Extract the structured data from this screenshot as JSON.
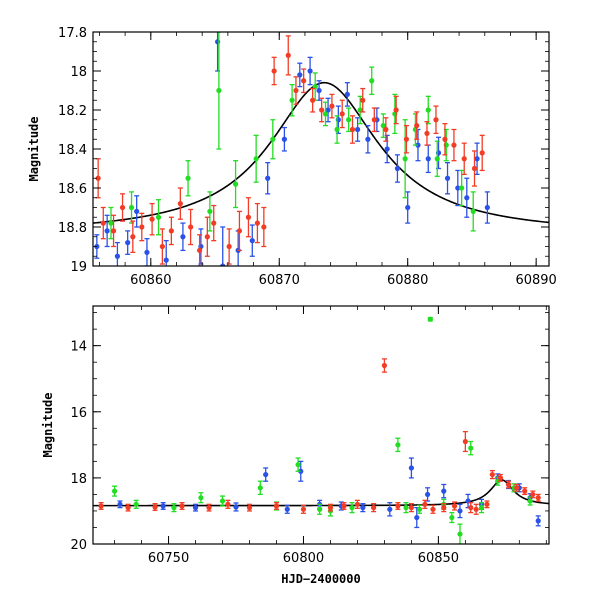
{
  "chart_data": [
    {
      "type": "scatter",
      "title": "",
      "xlabel": "",
      "ylabel": "Magnitude",
      "xlim": [
        60855.5,
        60891
      ],
      "ylim": [
        19.0,
        17.8
      ],
      "y_inverted": true,
      "x_ticks": [
        60860,
        60870,
        60880,
        60890
      ],
      "y_ticks": [
        17.8,
        18,
        18.2,
        18.4,
        18.6,
        18.8,
        19
      ],
      "y_tick_labels": [
        "17.8",
        "18",
        "18.2",
        "18.4",
        "18.6",
        "18.8",
        "19"
      ],
      "grid": false,
      "legend": "none",
      "model_curve": {
        "type": "line",
        "color": "#000000",
        "peak_x": 60873.5,
        "peak_mag": 18.06,
        "baseline_mag": 18.84,
        "width_days": 5.2
      },
      "series": [
        {
          "color": "#2a52e8",
          "x": [
            60855.8,
            60856.6,
            60857.4,
            60858.2,
            60858.9,
            60859.7,
            60861.2,
            60862.5,
            60863.9,
            60865.2,
            60865.6,
            60866.8,
            60867.9,
            60869.1,
            60870.4,
            60871.6,
            60872.4,
            60873.1,
            60873.8,
            60874.6,
            60875.3,
            60876.1,
            60876.9,
            60877.6,
            60878.4,
            60879.2,
            60880.0,
            60880.8,
            60881.6,
            60882.4,
            60883.1,
            60883.9,
            60884.6,
            60885.4,
            60886.2
          ],
          "y": [
            18.9,
            18.82,
            18.95,
            18.88,
            18.72,
            18.93,
            18.97,
            18.85,
            18.9,
            17.85,
            19.0,
            18.92,
            18.87,
            18.55,
            18.35,
            18.02,
            18.0,
            18.1,
            18.2,
            18.25,
            18.12,
            18.3,
            18.35,
            18.25,
            18.4,
            18.5,
            18.7,
            18.38,
            18.45,
            18.42,
            18.55,
            18.6,
            18.65,
            18.45,
            18.7
          ],
          "err": [
            0.06,
            0.08,
            0.07,
            0.06,
            0.08,
            0.07,
            0.1,
            0.07,
            0.09,
            0.15,
            0.2,
            0.1,
            0.08,
            0.08,
            0.06,
            0.06,
            0.07,
            0.05,
            0.06,
            0.07,
            0.06,
            0.06,
            0.07,
            0.06,
            0.07,
            0.07,
            0.08,
            0.08,
            0.07,
            0.08,
            0.08,
            0.09,
            0.1,
            0.08,
            0.08
          ]
        },
        {
          "color": "#22dd22",
          "x": [
            60856.9,
            60858.5,
            60860.6,
            60862.9,
            60864.6,
            60865.3,
            60866.6,
            60868.2,
            60869.5,
            60871.0,
            60872.8,
            60873.6,
            60874.5,
            60875.4,
            60876.3,
            60877.2,
            60878.1,
            60879.0,
            60879.8,
            60880.6,
            60881.6,
            60882.3,
            60883.0,
            60884.2,
            60885.1
          ],
          "y": [
            18.78,
            18.7,
            18.75,
            18.55,
            18.72,
            18.1,
            18.58,
            18.45,
            18.35,
            18.15,
            18.08,
            18.22,
            18.3,
            18.25,
            18.2,
            18.05,
            18.28,
            18.22,
            18.45,
            18.3,
            18.2,
            18.45,
            18.38,
            18.6,
            18.72
          ],
          "err": [
            0.08,
            0.08,
            0.09,
            0.09,
            0.1,
            0.3,
            0.12,
            0.12,
            0.1,
            0.08,
            0.07,
            0.06,
            0.07,
            0.06,
            0.07,
            0.07,
            0.06,
            0.1,
            0.2,
            0.08,
            0.07,
            0.09,
            0.08,
            0.09,
            0.1
          ]
        },
        {
          "color": "#f23c26",
          "x": [
            60855.9,
            60856.3,
            60857.1,
            60857.8,
            60858.6,
            60859.3,
            60860.1,
            60860.9,
            60861.6,
            60862.3,
            60863.1,
            60863.8,
            60864.4,
            60864.9,
            60866.1,
            60866.9,
            60867.6,
            60868.3,
            60868.8,
            60869.6,
            60870.7,
            60871.3,
            60871.9,
            60872.6,
            60873.3,
            60874.1,
            60874.9,
            60875.7,
            60876.5,
            60877.4,
            60878.3,
            60879.1,
            60879.9,
            60880.7,
            60881.5,
            60882.2,
            60882.9,
            60883.6,
            60884.4,
            60885.2,
            60885.8
          ],
          "y": [
            18.55,
            18.78,
            18.82,
            18.7,
            18.85,
            18.8,
            18.76,
            18.9,
            18.82,
            18.68,
            18.8,
            18.92,
            18.85,
            18.78,
            18.9,
            18.82,
            18.75,
            18.78,
            18.8,
            18.0,
            17.92,
            18.1,
            18.05,
            18.15,
            18.2,
            18.18,
            18.22,
            18.3,
            18.15,
            18.25,
            18.3,
            18.2,
            18.35,
            18.28,
            18.32,
            18.25,
            18.35,
            18.38,
            18.45,
            18.5,
            18.42
          ],
          "err": [
            0.1,
            0.08,
            0.08,
            0.07,
            0.08,
            0.07,
            0.08,
            0.09,
            0.07,
            0.08,
            0.09,
            0.08,
            0.1,
            0.09,
            0.09,
            0.1,
            0.1,
            0.1,
            0.1,
            0.07,
            0.1,
            0.07,
            0.06,
            0.06,
            0.06,
            0.06,
            0.07,
            0.07,
            0.06,
            0.06,
            0.06,
            0.07,
            0.07,
            0.07,
            0.06,
            0.07,
            0.08,
            0.08,
            0.08,
            0.09,
            0.09
          ]
        }
      ]
    },
    {
      "type": "scatter",
      "title": "",
      "xlabel": "HJD−2400000",
      "ylabel": "Magnitude",
      "xlim": [
        60722,
        60891
      ],
      "ylim": [
        20.0,
        12.8
      ],
      "y_inverted": true,
      "x_ticks": [
        60750,
        60800,
        60850
      ],
      "y_ticks": [
        14,
        16,
        18,
        20
      ],
      "y_tick_labels": [
        "14",
        "16",
        "18",
        "20"
      ],
      "grid": false,
      "legend": "none",
      "model_curve": {
        "type": "line",
        "color": "#000000",
        "peak_x": 60873.5,
        "peak_mag": 18.06,
        "baseline_mag": 18.84,
        "width_days": 5.2
      },
      "series": [
        {
          "color": "#2a52e8",
          "x": [
            60732,
            60748,
            60760,
            60775,
            60786,
            60794,
            60799,
            60806,
            60814,
            60822,
            60832,
            60840,
            60842,
            60846,
            60852,
            60858,
            60861,
            60866,
            60872,
            60876,
            60880,
            60884,
            60887
          ],
          "y": [
            18.8,
            18.85,
            18.9,
            18.88,
            17.9,
            18.95,
            17.8,
            18.8,
            18.85,
            18.9,
            18.95,
            17.7,
            19.2,
            18.5,
            18.4,
            19.0,
            18.7,
            18.8,
            18.0,
            18.2,
            18.3,
            18.6,
            19.3
          ],
          "err": [
            0.1,
            0.1,
            0.1,
            0.12,
            0.2,
            0.12,
            0.3,
            0.12,
            0.12,
            0.12,
            0.2,
            0.3,
            0.3,
            0.2,
            0.2,
            0.2,
            0.2,
            0.15,
            0.12,
            0.12,
            0.12,
            0.12,
            0.15
          ]
        },
        {
          "color": "#22dd22",
          "x": [
            60730,
            60738,
            60752,
            60762,
            60770,
            60784,
            60790,
            60798,
            60806,
            60810,
            60818,
            60835,
            60838,
            60843,
            60847,
            60852,
            60855,
            60858,
            60862,
            60866,
            60872,
            60878,
            60884
          ],
          "y": [
            18.4,
            18.8,
            18.9,
            18.6,
            18.7,
            18.3,
            18.85,
            17.6,
            18.95,
            19.0,
            18.9,
            17.0,
            18.9,
            18.95,
            13.2,
            18.8,
            19.2,
            19.7,
            17.1,
            18.9,
            18.1,
            18.3,
            18.7
          ],
          "err": [
            0.15,
            0.12,
            0.12,
            0.15,
            0.15,
            0.2,
            0.12,
            0.2,
            0.15,
            0.15,
            0.15,
            0.2,
            0.15,
            0.12,
            0.05,
            0.15,
            0.15,
            0.3,
            0.2,
            0.15,
            0.12,
            0.12,
            0.12
          ]
        },
        {
          "color": "#f23c26",
          "x": [
            60725,
            60735,
            60745,
            60755,
            60765,
            60772,
            60780,
            60790,
            60800,
            60810,
            60815,
            60820,
            60826,
            60830,
            60835,
            60840,
            60845,
            60848,
            60852,
            60856,
            60860,
            60862,
            60864,
            60868,
            60870,
            60873,
            60876,
            60879,
            60882,
            60885,
            60887
          ],
          "y": [
            18.85,
            18.9,
            18.88,
            18.85,
            18.9,
            18.8,
            18.9,
            18.85,
            18.95,
            18.9,
            18.85,
            18.8,
            18.9,
            14.6,
            18.85,
            18.9,
            18.8,
            18.95,
            18.9,
            18.85,
            16.9,
            18.9,
            18.95,
            18.8,
            17.9,
            18.0,
            18.2,
            18.3,
            18.4,
            18.5,
            18.6
          ],
          "err": [
            0.1,
            0.1,
            0.1,
            0.1,
            0.1,
            0.12,
            0.1,
            0.1,
            0.12,
            0.1,
            0.1,
            0.12,
            0.12,
            0.2,
            0.1,
            0.12,
            0.12,
            0.12,
            0.12,
            0.12,
            0.3,
            0.15,
            0.15,
            0.1,
            0.12,
            0.1,
            0.1,
            0.1,
            0.1,
            0.1,
            0.1
          ]
        }
      ]
    }
  ]
}
